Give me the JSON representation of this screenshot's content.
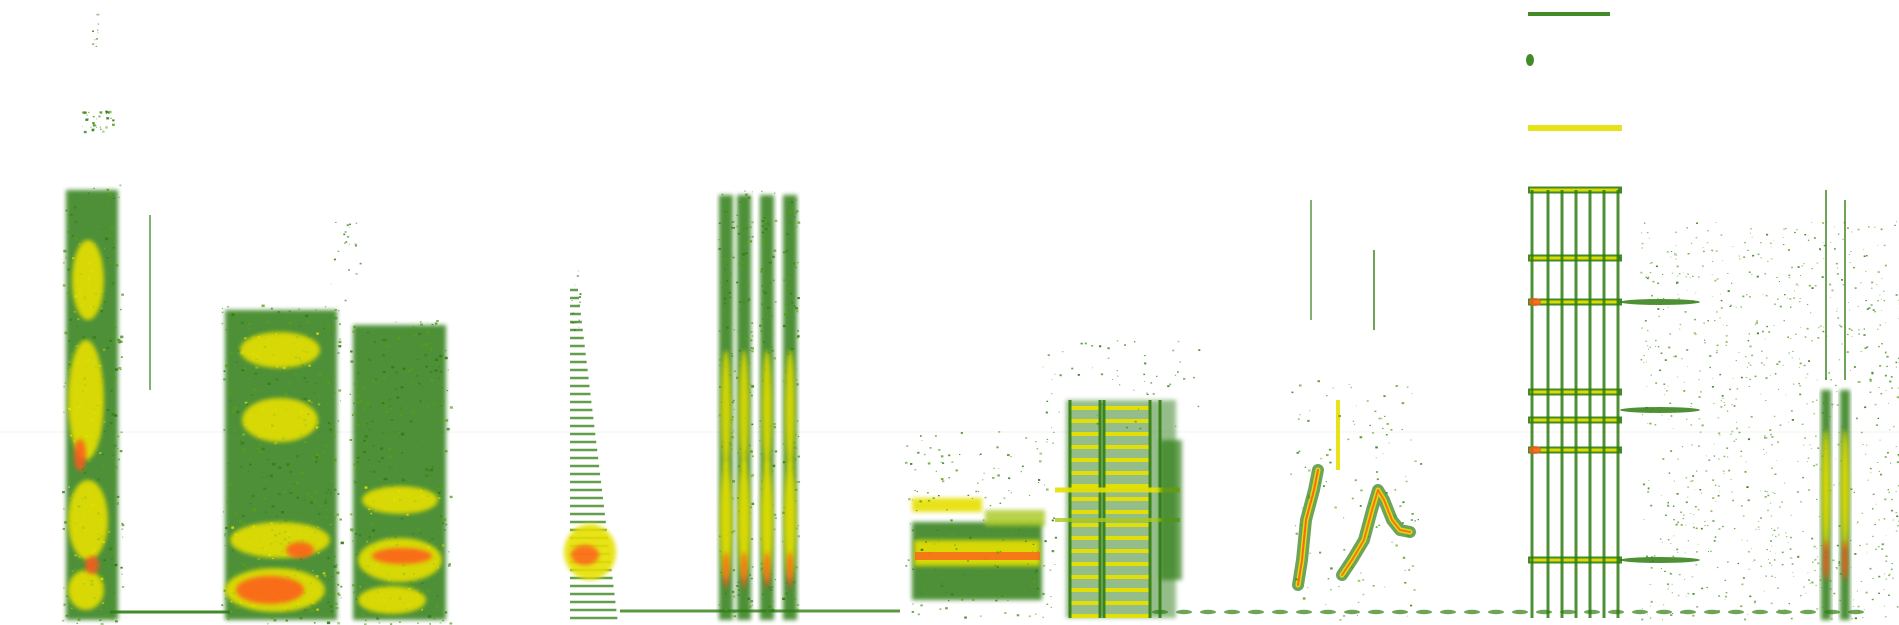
{
  "image": {
    "kind": "spectrogram",
    "background_color": "#ffffff",
    "palette": [
      "#2f7d12",
      "#5a9e14",
      "#a8c81a",
      "#e6e000",
      "#f2a900",
      "#ff5a1e"
    ],
    "axes_visible": false,
    "labels_visible": false
  }
}
